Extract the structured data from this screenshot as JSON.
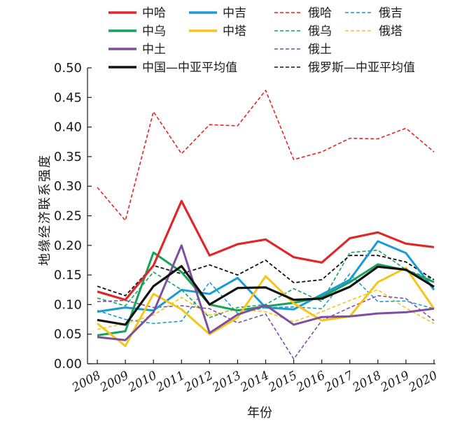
{
  "chart_data": {
    "type": "line",
    "title": "",
    "xlabel": "年份",
    "ylabel": "地缘经济联系强度",
    "x": [
      "2008",
      "2009",
      "2010",
      "2011",
      "2012",
      "2013",
      "2014",
      "2015",
      "2016",
      "2017",
      "2018",
      "2019",
      "2020"
    ],
    "x_range": [
      2007.65,
      2020
    ],
    "ylim": [
      0,
      0.5
    ],
    "yticks": [
      "0.00",
      "0.05",
      "0.10",
      "0.15",
      "0.20",
      "0.25",
      "0.30",
      "0.35",
      "0.40",
      "0.45",
      "0.50"
    ],
    "grid": false,
    "legend_position": "top",
    "series": [
      {
        "name": "中哈",
        "color": "#e0262b",
        "dash": "solid",
        "width": 3.2,
        "values": [
          0.122,
          0.108,
          0.166,
          0.275,
          0.183,
          0.202,
          0.21,
          0.18,
          0.171,
          0.212,
          0.222,
          0.203,
          0.197
        ]
      },
      {
        "name": "中吉",
        "color": "#1a9ad6",
        "dash": "solid",
        "width": 3,
        "values": [
          0.088,
          0.095,
          0.09,
          0.125,
          0.118,
          0.145,
          0.095,
          0.092,
          0.117,
          0.142,
          0.207,
          0.187,
          0.125
        ]
      },
      {
        "name": "中乌",
        "color": "#17a35a",
        "dash": "solid",
        "width": 3,
        "values": [
          0.048,
          0.055,
          0.188,
          0.155,
          0.1,
          0.09,
          0.097,
          0.103,
          0.113,
          0.138,
          0.168,
          0.158,
          0.138
        ]
      },
      {
        "name": "中塔",
        "color": "#f5c518",
        "dash": "solid",
        "width": 3,
        "values": [
          0.068,
          0.03,
          0.118,
          0.092,
          0.05,
          0.078,
          0.148,
          0.102,
          0.073,
          0.08,
          0.138,
          0.162,
          0.093
        ]
      },
      {
        "name": "中土",
        "color": "#7e4fa0",
        "dash": "solid",
        "width": 3,
        "values": [
          0.045,
          0.04,
          0.087,
          0.2,
          0.052,
          0.083,
          0.099,
          0.066,
          0.079,
          0.08,
          0.085,
          0.087,
          0.093
        ]
      },
      {
        "name": "中国—中亚平均值",
        "color": "#111111",
        "dash": "solid",
        "width": 3.2,
        "values": [
          0.074,
          0.066,
          0.131,
          0.165,
          0.1,
          0.128,
          0.129,
          0.108,
          0.11,
          0.13,
          0.164,
          0.159,
          0.13
        ]
      },
      {
        "name": "俄哈",
        "color": "#e0262b",
        "dash": "dashed",
        "width": 1.6,
        "values": [
          0.298,
          0.242,
          0.426,
          0.355,
          0.404,
          0.402,
          0.462,
          0.345,
          0.358,
          0.381,
          0.38,
          0.398,
          0.358
        ]
      },
      {
        "name": "俄吉",
        "color": "#1a9ad6",
        "dash": "dashed",
        "width": 1.6,
        "values": [
          0.09,
          0.075,
          0.068,
          0.072,
          0.138,
          0.085,
          0.095,
          0.096,
          0.093,
          0.152,
          0.105,
          0.106,
          0.093
        ]
      },
      {
        "name": "俄乌",
        "color": "#17a35a",
        "dash": "dashed",
        "width": 1.6,
        "values": [
          0.111,
          0.098,
          0.155,
          0.125,
          0.078,
          0.095,
          0.1,
          0.127,
          0.105,
          0.188,
          0.192,
          0.159,
          0.142
        ]
      },
      {
        "name": "俄塔",
        "color": "#f5c518",
        "dash": "dashed",
        "width": 1.6,
        "values": [
          0.058,
          0.068,
          0.082,
          0.112,
          0.082,
          0.092,
          0.088,
          0.071,
          0.088,
          0.107,
          0.125,
          0.094,
          0.068
        ]
      },
      {
        "name": "俄土",
        "color": "#7e4fa0",
        "dash": "dashed",
        "width": 1.6,
        "values": [
          0.105,
          0.107,
          0.095,
          0.098,
          0.093,
          0.069,
          0.084,
          0.008,
          0.073,
          0.095,
          0.115,
          0.11,
          0.073
        ]
      },
      {
        "name": "俄罗斯—中亚平均值",
        "color": "#111111",
        "dash": "dashed",
        "width": 1.8,
        "values": [
          0.131,
          0.115,
          0.166,
          0.152,
          0.167,
          0.15,
          0.175,
          0.137,
          0.142,
          0.183,
          0.183,
          0.172,
          0.142
        ]
      }
    ],
    "legend_order": [
      "中哈",
      "中吉",
      "俄哈",
      "俄吉",
      "中乌",
      "中塔",
      "俄乌",
      "俄塔",
      "中土",
      "俄土",
      "中国—中亚平均值",
      "俄罗斯—中亚平均值"
    ]
  }
}
